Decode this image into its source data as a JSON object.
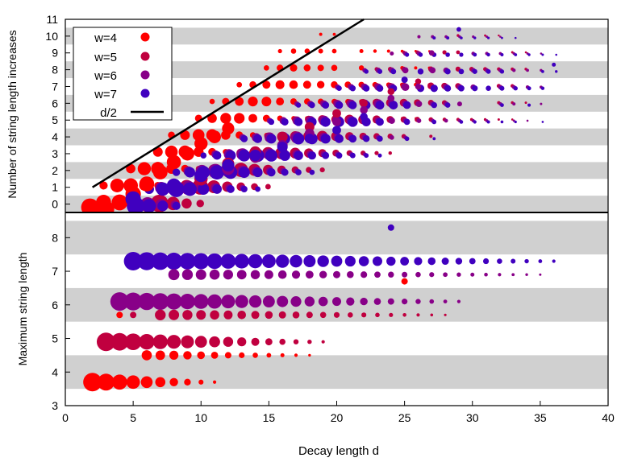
{
  "figure": {
    "xlabel": "Decay length d",
    "x_ticks": [
      "0",
      "5",
      "10",
      "15",
      "20",
      "25",
      "30",
      "35",
      "40"
    ]
  },
  "chart_data": [
    {
      "type": "scatter",
      "ylabel": "Number of string length increases",
      "xlim": [
        0,
        40
      ],
      "ylim": [
        -0.5,
        11
      ],
      "y_ticks": [
        "0",
        "1",
        "2",
        "3",
        "4",
        "5",
        "6",
        "7",
        "8",
        "9",
        "10",
        "11"
      ],
      "grid": "alternating gray bands at each integer y",
      "legend_position": "top-left",
      "series": [
        {
          "name": "w=4",
          "color": "#ff0000",
          "points": [
            [
              2,
              -0.3
            ],
            [
              3,
              -0.3
            ],
            [
              4,
              0.1
            ],
            [
              5,
              0.6
            ],
            [
              6,
              1.2
            ],
            [
              7,
              1.9
            ],
            [
              8,
              2.5
            ],
            [
              9,
              3.0
            ],
            [
              10,
              3.6
            ],
            [
              11,
              4.0
            ],
            [
              12,
              4.5
            ]
          ]
        },
        {
          "name": "w=5",
          "color": "#c0003f",
          "points": [
            [
              10,
              1.5
            ],
            [
              12,
              2.4
            ],
            [
              14,
              3.1
            ],
            [
              16,
              4.0
            ],
            [
              18,
              4.6
            ],
            [
              20,
              5.4
            ],
            [
              22,
              6.0
            ],
            [
              24,
              6.7
            ],
            [
              26,
              7.3
            ]
          ]
        },
        {
          "name": "w=6",
          "color": "#880088",
          "points": [
            [
              12,
              2.1
            ],
            [
              14,
              2.8
            ],
            [
              16,
              3.5
            ],
            [
              18,
              4.2
            ],
            [
              20,
              4.9
            ],
            [
              22,
              5.6
            ],
            [
              24,
              6.3
            ],
            [
              26,
              7.0
            ],
            [
              27,
              9.0
            ]
          ]
        },
        {
          "name": "w=7",
          "color": "#4000bf",
          "points": [
            [
              5,
              0.3
            ],
            [
              8,
              1.1
            ],
            [
              10,
              1.7
            ],
            [
              12,
              2.3
            ],
            [
              14,
              2.9
            ],
            [
              16,
              3.4
            ],
            [
              18,
              3.9
            ],
            [
              20,
              4.4
            ],
            [
              22,
              5.2
            ],
            [
              25,
              7.4
            ],
            [
              29,
              10.4
            ],
            [
              36,
              8.3
            ]
          ]
        },
        {
          "name": "d/2",
          "color": "#000000",
          "line": [
            [
              2,
              1
            ],
            [
              22,
              11
            ]
          ]
        }
      ]
    },
    {
      "type": "scatter",
      "ylabel": "Maximum string length",
      "xlim": [
        0,
        40
      ],
      "ylim": [
        3,
        8.75
      ],
      "y_ticks": [
        "3",
        "4",
        "5",
        "6",
        "7",
        "8"
      ],
      "grid": "alternating gray bands at each integer y",
      "series": [
        {
          "name": "w=4",
          "color": "#ff0000",
          "y": 3.7,
          "x_range": [
            2,
            11
          ],
          "extra": [
            [
              4,
              5.7
            ],
            [
              25,
              6.7
            ]
          ]
        },
        {
          "name": "w=5",
          "color": "#c0003f",
          "y": 4.9,
          "x_range": [
            3,
            19
          ],
          "extra": [
            [
              5,
              5.7
            ],
            [
              10,
              6.9
            ]
          ]
        },
        {
          "name": "w=6",
          "color": "#880088",
          "y": 6.1,
          "x_range": [
            4,
            29
          ],
          "extra": [
            [
              11,
              6.9
            ]
          ]
        },
        {
          "name": "w=7",
          "color": "#4000bf",
          "y": 7.3,
          "x_range": [
            5,
            36
          ],
          "extra": [
            [
              24,
              8.3
            ]
          ]
        }
      ]
    }
  ]
}
